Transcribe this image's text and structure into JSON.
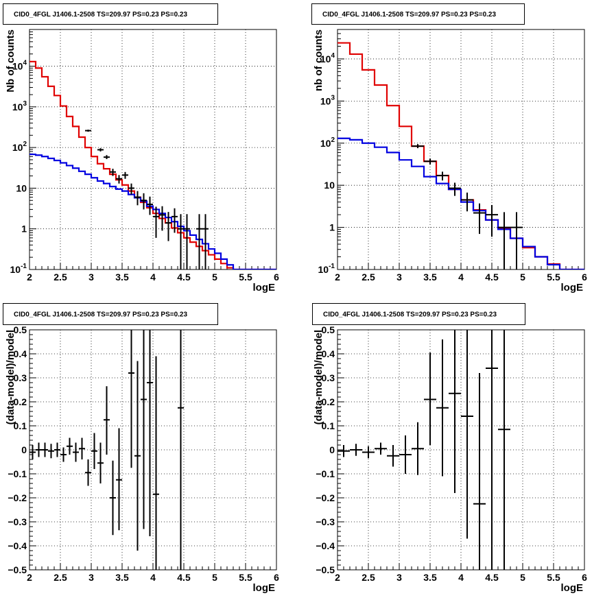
{
  "window_title": "",
  "colors": {
    "data": "#000000",
    "total_model": "#e00000",
    "source_model": "#0000e0",
    "grid": "#000000",
    "frame": "#000000"
  },
  "chart_data": [
    {
      "id": "counts-fine",
      "type": "line",
      "title": "CID0_4FGL J1406.1-2508 TS=209.97 PS=0.23 PS=0.23",
      "xlabel": "logE",
      "ylabel": "Nb of counts",
      "xlim": [
        2,
        6
      ],
      "ylim": [
        0.1,
        80000
      ],
      "yscale": "log",
      "grid": true,
      "x_ticks": [
        "2",
        "2.5",
        "3",
        "3.5",
        "4",
        "4.5",
        "5",
        "5.5",
        "6"
      ],
      "y_ticks": [
        "10^-1",
        "1",
        "10",
        "10^2",
        "10^3",
        "10^4"
      ],
      "series": [
        {
          "kind": "step",
          "color": "#e00000",
          "x_edges": [
            2.0,
            2.1,
            2.2,
            2.3,
            2.4,
            2.5,
            2.6,
            2.7,
            2.8,
            2.9,
            3.0,
            3.1,
            3.2,
            3.3,
            3.4,
            3.5,
            3.6,
            3.7,
            3.8,
            3.9,
            4.0,
            4.1,
            4.2,
            4.3,
            4.4,
            4.5,
            4.6,
            4.7,
            4.8,
            4.9,
            5.0,
            5.1,
            5.2,
            5.3,
            5.4,
            5.5,
            5.6,
            5.7,
            5.8,
            5.9,
            6.0
          ],
          "values": [
            13000,
            9000,
            5500,
            3200,
            1900,
            1050,
            580,
            330,
            180,
            100,
            60,
            40,
            30,
            22,
            16,
            12,
            8.5,
            6,
            4.5,
            3.3,
            2.4,
            1.8,
            1.4,
            1.05,
            0.8,
            0.6,
            0.47,
            0.37,
            0.29,
            0.23,
            0.18,
            0.14,
            0.11,
            0.1,
            0.1,
            0.1,
            0.1,
            0.1,
            0.1,
            0.1
          ]
        },
        {
          "kind": "step",
          "color": "#0000e0",
          "x_edges": [
            2.0,
            2.1,
            2.2,
            2.3,
            2.4,
            2.5,
            2.6,
            2.7,
            2.8,
            2.9,
            3.0,
            3.1,
            3.2,
            3.3,
            3.4,
            3.5,
            3.6,
            3.7,
            3.8,
            3.9,
            4.0,
            4.1,
            4.2,
            4.3,
            4.4,
            4.5,
            4.6,
            4.7,
            4.8,
            4.9,
            5.0,
            5.1,
            5.2,
            5.3,
            5.4,
            5.5,
            5.6,
            5.7,
            5.8,
            5.9,
            6.0
          ],
          "values": [
            68,
            65,
            60,
            54,
            48,
            42,
            36,
            31,
            26,
            22,
            18,
            15,
            13,
            11,
            9.5,
            8.5,
            7,
            5.8,
            4.8,
            3.6,
            3.0,
            2.4,
            1.9,
            1.5,
            1.15,
            0.9,
            0.7,
            0.55,
            0.43,
            0.32,
            0.25,
            0.18,
            0.13,
            0.1,
            0.1,
            0.1,
            0.1,
            0.1,
            0.1,
            0.1
          ]
        }
      ],
      "points": [
        {
          "x": 2.95,
          "y": 260,
          "xerr": 0.05,
          "ylo": 245,
          "yhi": 275
        },
        {
          "x": 3.15,
          "y": 88,
          "xerr": 0.05,
          "ylo": 80,
          "yhi": 96
        },
        {
          "x": 3.25,
          "y": 58,
          "xerr": 0.05,
          "ylo": 52,
          "yhi": 65
        },
        {
          "x": 3.35,
          "y": 25,
          "xerr": 0.05,
          "ylo": 20,
          "yhi": 30
        },
        {
          "x": 3.45,
          "y": 17,
          "xerr": 0.05,
          "ylo": 13,
          "yhi": 21
        },
        {
          "x": 3.55,
          "y": 21,
          "xerr": 0.05,
          "ylo": 17,
          "yhi": 25
        },
        {
          "x": 3.65,
          "y": 10,
          "xerr": 0.05,
          "ylo": 7,
          "yhi": 13
        },
        {
          "x": 3.75,
          "y": 6,
          "xerr": 0.05,
          "ylo": 3.8,
          "yhi": 8.5
        },
        {
          "x": 3.85,
          "y": 5,
          "xerr": 0.05,
          "ylo": 3,
          "yhi": 7.5
        },
        {
          "x": 3.95,
          "y": 4,
          "xerr": 0.05,
          "ylo": 2.2,
          "yhi": 6.2
        },
        {
          "x": 4.05,
          "y": 2,
          "xerr": 0.05,
          "ylo": 0.6,
          "yhi": 3.5
        },
        {
          "x": 4.15,
          "y": 2.2,
          "xerr": 0.05,
          "ylo": 0.9,
          "yhi": 3.6
        },
        {
          "x": 4.25,
          "y": 1.4,
          "xerr": 0.05,
          "ylo": 0.5,
          "yhi": 2.6
        },
        {
          "x": 4.35,
          "y": 2,
          "xerr": 0.05,
          "ylo": 0.8,
          "yhi": 3.2
        },
        {
          "x": 4.45,
          "y": 1,
          "xerr": 0.05,
          "ylo": 0.1,
          "yhi": 2.3
        },
        {
          "x": 4.55,
          "y": 1,
          "xerr": 0.05,
          "ylo": 0.1,
          "yhi": 2.3
        },
        {
          "x": 4.75,
          "y": 1,
          "xerr": 0.05,
          "ylo": 0.1,
          "yhi": 2.3
        },
        {
          "x": 4.85,
          "y": 1,
          "xerr": 0.05,
          "ylo": 0.1,
          "yhi": 2.3
        }
      ]
    },
    {
      "id": "counts-coarse",
      "type": "line",
      "title": "CID0_4FGL J1406.1-2508 TS=209.97 PS=0.23 PS=0.23",
      "xlabel": "logE",
      "ylabel": "nb of counts",
      "xlim": [
        2,
        6
      ],
      "ylim": [
        0.1,
        50000
      ],
      "yscale": "log",
      "grid": true,
      "x_ticks": [
        "2",
        "2.5",
        "3",
        "3.5",
        "4",
        "4.5",
        "5",
        "5.5",
        "6"
      ],
      "y_ticks": [
        "10^-1",
        "1",
        "10",
        "10^2",
        "10^3",
        "10^4"
      ],
      "series": [
        {
          "kind": "step",
          "color": "#e00000",
          "x_edges": [
            2.0,
            2.2,
            2.4,
            2.6,
            2.8,
            3.0,
            3.2,
            3.4,
            3.6,
            3.8,
            4.0,
            4.2,
            4.4,
            4.6,
            4.8,
            5.0,
            5.2,
            5.4,
            5.6,
            5.8,
            6.0
          ],
          "values": [
            24000,
            13000,
            5500,
            2400,
            780,
            250,
            85,
            37,
            17,
            8,
            4.5,
            2.6,
            1.5,
            0.95,
            0.55,
            0.33,
            0.2,
            0.135,
            0.1,
            0.1
          ]
        },
        {
          "kind": "step",
          "color": "#0000e0",
          "x_edges": [
            2.0,
            2.2,
            2.4,
            2.6,
            2.8,
            3.0,
            3.2,
            3.4,
            3.6,
            3.8,
            4.0,
            4.2,
            4.4,
            4.6,
            4.8,
            5.0,
            5.2,
            5.4,
            5.6,
            5.8,
            6.0
          ],
          "values": [
            130,
            120,
            100,
            80,
            60,
            40,
            28,
            16,
            11,
            8,
            4,
            2.5,
            1.5,
            0.9,
            0.55,
            0.35,
            0.2,
            0.13,
            0.1,
            0.1
          ]
        }
      ],
      "points": [
        {
          "x": 3.3,
          "y": 85,
          "xerr": 0.1,
          "ylo": 76,
          "yhi": 95
        },
        {
          "x": 3.5,
          "y": 37,
          "xerr": 0.1,
          "ylo": 31,
          "yhi": 43
        },
        {
          "x": 3.7,
          "y": 17,
          "xerr": 0.1,
          "ylo": 13,
          "yhi": 21
        },
        {
          "x": 3.9,
          "y": 8.5,
          "xerr": 0.1,
          "ylo": 5.6,
          "yhi": 11.5
        },
        {
          "x": 4.1,
          "y": 4.5,
          "xerr": 0.1,
          "ylo": 2.4,
          "yhi": 6.7
        },
        {
          "x": 4.3,
          "y": 2.2,
          "xerr": 0.1,
          "ylo": 0.7,
          "yhi": 3.7
        },
        {
          "x": 4.5,
          "y": 2,
          "xerr": 0.1,
          "ylo": 0.6,
          "yhi": 3.4
        },
        {
          "x": 4.7,
          "y": 1,
          "xerr": 0.1,
          "ylo": 0.1,
          "yhi": 2.3
        },
        {
          "x": 4.9,
          "y": 1,
          "xerr": 0.1,
          "ylo": 0.1,
          "yhi": 2.3
        }
      ]
    },
    {
      "id": "residuals-fine",
      "type": "scatter",
      "title": "CID0_4FGL J1406.1-2508 TS=209.97 PS=0.23 PS=0.23",
      "xlabel": "logE",
      "ylabel": "(data-model)/model",
      "xlim": [
        2,
        6
      ],
      "ylim": [
        -0.5,
        0.5
      ],
      "yscale": "linear",
      "grid": true,
      "x_ticks": [
        "2",
        "2.5",
        "3",
        "3.5",
        "4",
        "4.5",
        "5",
        "5.5",
        "6"
      ],
      "y_ticks": [
        "−0.5",
        "−0.4",
        "−0.3",
        "−0.2",
        "−0.1",
        "0",
        "0.1",
        "0.2",
        "0.3",
        "0.4",
        "0.5"
      ],
      "points": [
        {
          "x": 2.05,
          "y": -0.01,
          "xerr": 0.05,
          "ylo": -0.04,
          "yhi": 0.02
        },
        {
          "x": 2.15,
          "y": 0.0,
          "xerr": 0.05,
          "ylo": -0.03,
          "yhi": 0.03
        },
        {
          "x": 2.25,
          "y": 0.0,
          "xerr": 0.05,
          "ylo": -0.03,
          "yhi": 0.03
        },
        {
          "x": 2.35,
          "y": -0.005,
          "xerr": 0.05,
          "ylo": -0.035,
          "yhi": 0.025
        },
        {
          "x": 2.45,
          "y": 0.0,
          "xerr": 0.05,
          "ylo": -0.03,
          "yhi": 0.03
        },
        {
          "x": 2.55,
          "y": -0.02,
          "xerr": 0.05,
          "ylo": -0.05,
          "yhi": 0.01
        },
        {
          "x": 2.65,
          "y": 0.015,
          "xerr": 0.05,
          "ylo": -0.02,
          "yhi": 0.05
        },
        {
          "x": 2.75,
          "y": -0.01,
          "xerr": 0.05,
          "ylo": -0.05,
          "yhi": 0.03
        },
        {
          "x": 2.85,
          "y": 0.005,
          "xerr": 0.05,
          "ylo": -0.04,
          "yhi": 0.05
        },
        {
          "x": 2.95,
          "y": -0.095,
          "xerr": 0.05,
          "ylo": -0.15,
          "yhi": -0.04
        },
        {
          "x": 3.05,
          "y": -0.005,
          "xerr": 0.05,
          "ylo": -0.08,
          "yhi": 0.07
        },
        {
          "x": 3.15,
          "y": -0.055,
          "xerr": 0.05,
          "ylo": -0.14,
          "yhi": 0.03
        },
        {
          "x": 3.25,
          "y": 0.125,
          "xerr": 0.05,
          "ylo": -0.02,
          "yhi": 0.265
        },
        {
          "x": 3.35,
          "y": -0.2,
          "xerr": 0.05,
          "ylo": -0.355,
          "yhi": -0.045
        },
        {
          "x": 3.45,
          "y": -0.125,
          "xerr": 0.05,
          "ylo": -0.335,
          "yhi": 0.09
        },
        {
          "x": 3.65,
          "y": 0.32,
          "xerr": 0.05,
          "ylo": -0.075,
          "yhi": 0.5
        },
        {
          "x": 3.75,
          "y": -0.025,
          "xerr": 0.05,
          "ylo": -0.42,
          "yhi": 0.37
        },
        {
          "x": 3.85,
          "y": 0.21,
          "xerr": 0.05,
          "ylo": -0.33,
          "yhi": 0.5
        },
        {
          "x": 3.95,
          "y": 0.28,
          "xerr": 0.05,
          "ylo": -0.36,
          "yhi": 0.5
        },
        {
          "x": 4.05,
          "y": -0.185,
          "xerr": 0.05,
          "ylo": -0.5,
          "yhi": 0.39
        },
        {
          "x": 4.45,
          "y": 0.175,
          "xerr": 0.05,
          "ylo": -0.5,
          "yhi": 0.5
        }
      ]
    },
    {
      "id": "residuals-coarse",
      "type": "scatter",
      "title": "CID0_4FGL J1406.1-2508 TS=209.97 PS=0.23 PS=0.23",
      "xlabel": "logE",
      "ylabel": "(data-model)/model",
      "xlim": [
        2,
        6
      ],
      "ylim": [
        -0.5,
        0.5
      ],
      "yscale": "linear",
      "grid": true,
      "x_ticks": [
        "2",
        "2.5",
        "3",
        "3.5",
        "4",
        "4.5",
        "5",
        "5.5",
        "6"
      ],
      "y_ticks": [
        "−0.5",
        "−0.4",
        "−0.3",
        "−0.2",
        "−0.1",
        "0",
        "0.1",
        "0.2",
        "0.3",
        "0.4",
        "0.5"
      ],
      "points": [
        {
          "x": 2.1,
          "y": -0.005,
          "xerr": 0.1,
          "ylo": -0.03,
          "yhi": 0.02
        },
        {
          "x": 2.3,
          "y": 0.0,
          "xerr": 0.1,
          "ylo": -0.025,
          "yhi": 0.025
        },
        {
          "x": 2.5,
          "y": -0.01,
          "xerr": 0.1,
          "ylo": -0.035,
          "yhi": 0.015
        },
        {
          "x": 2.7,
          "y": 0.005,
          "xerr": 0.1,
          "ylo": -0.02,
          "yhi": 0.03
        },
        {
          "x": 2.9,
          "y": -0.025,
          "xerr": 0.1,
          "ylo": -0.07,
          "yhi": 0.02
        },
        {
          "x": 3.1,
          "y": -0.02,
          "xerr": 0.1,
          "ylo": -0.1,
          "yhi": 0.06
        },
        {
          "x": 3.3,
          "y": 0.005,
          "xerr": 0.1,
          "ylo": -0.105,
          "yhi": 0.115
        },
        {
          "x": 3.5,
          "y": 0.21,
          "xerr": 0.1,
          "ylo": 0.02,
          "yhi": 0.405
        },
        {
          "x": 3.7,
          "y": 0.175,
          "xerr": 0.1,
          "ylo": -0.11,
          "yhi": 0.46
        },
        {
          "x": 3.9,
          "y": 0.235,
          "xerr": 0.1,
          "ylo": -0.18,
          "yhi": 0.5
        },
        {
          "x": 4.1,
          "y": 0.14,
          "xerr": 0.1,
          "ylo": -0.37,
          "yhi": 0.5
        },
        {
          "x": 4.3,
          "y": -0.225,
          "xerr": 0.1,
          "ylo": -0.5,
          "yhi": 0.32
        },
        {
          "x": 4.5,
          "y": 0.34,
          "xerr": 0.1,
          "ylo": -0.5,
          "yhi": 0.5
        },
        {
          "x": 4.7,
          "y": 0.085,
          "xerr": 0.1,
          "ylo": -0.5,
          "yhi": 0.5
        }
      ]
    }
  ]
}
